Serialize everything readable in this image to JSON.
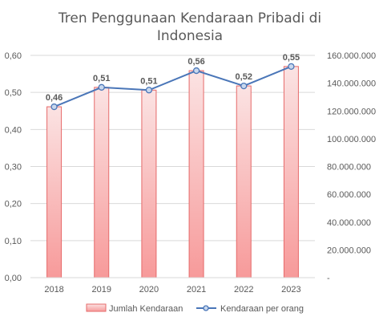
{
  "chart_data": {
    "type": "bar",
    "title_lines": [
      "Tren Penggunaan Kendaraan Pribadi di",
      "Indonesia"
    ],
    "categories": [
      "2018",
      "2019",
      "2020",
      "2021",
      "2022",
      "2023"
    ],
    "series": [
      {
        "name": "Jumlah Kendaraan",
        "type": "bar",
        "axis": "right",
        "values": [
          123000000,
          137000000,
          135000000,
          149000000,
          138000000,
          152000000
        ]
      },
      {
        "name": "Kendaraan per orang",
        "type": "line",
        "axis": "left",
        "values": [
          0.46,
          0.51,
          0.51,
          0.56,
          0.52,
          0.55
        ],
        "data_labels": [
          "0,46",
          "0,51",
          "0,51",
          "0,56",
          "0,52",
          "0,55"
        ]
      }
    ],
    "y_left": {
      "range": [
        0,
        0.6
      ],
      "ticks": [
        0,
        0.1,
        0.2,
        0.3,
        0.4,
        0.5,
        0.6
      ],
      "tick_labels": [
        "0,00",
        "0,10",
        "0,20",
        "0,30",
        "0,40",
        "0,50",
        "0,60"
      ]
    },
    "y_right": {
      "range": [
        0,
        160000000
      ],
      "ticks": [
        0,
        20000000,
        40000000,
        60000000,
        80000000,
        100000000,
        120000000,
        140000000,
        160000000
      ],
      "tick_labels": [
        "-",
        "20.000.000",
        "40.000.000",
        "60.000.000",
        "80.000.000",
        "100.000.000",
        "120.000.000",
        "140.000.000",
        "160.000.000"
      ]
    },
    "grid": true,
    "legend_position": "bottom",
    "colors": {
      "bar_fill_top": "#fbe3e3",
      "bar_fill_bottom": "#f79a9a",
      "bar_border": "#e66a6a",
      "line": "#4a76b8",
      "marker_fill": "#c8d8ee",
      "grid": "#d9d9d9",
      "text": "#595959"
    }
  }
}
